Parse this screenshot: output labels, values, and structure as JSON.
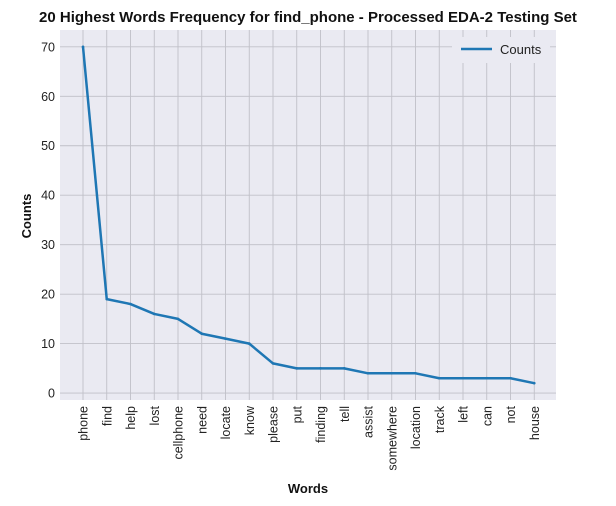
{
  "chart_data": {
    "type": "line",
    "title": "20 Highest Words Frequency for find_phone - Processed EDA-2 Testing Set",
    "xlabel": "Words",
    "ylabel": "Counts",
    "categories": [
      "phone",
      "find",
      "help",
      "lost",
      "cellphone",
      "need",
      "locate",
      "know",
      "please",
      "put",
      "finding",
      "tell",
      "assist",
      "somewhere",
      "location",
      "track",
      "left",
      "can",
      "not",
      "house"
    ],
    "series": [
      {
        "name": "Counts",
        "values": [
          70,
          19,
          18,
          16,
          15,
          12,
          11,
          10,
          6,
          5,
          5,
          5,
          4,
          4,
          4,
          3,
          3,
          3,
          3,
          2
        ]
      }
    ],
    "yticks": [
      0,
      10,
      20,
      30,
      40,
      50,
      60,
      70
    ],
    "ylim": [
      -1.4,
      73.4
    ],
    "grid": true,
    "legend_position": "top-right",
    "colors": {
      "line": "#1f77b4",
      "plot_background": "#eaeaf2",
      "grid": "#c0c0c8"
    }
  }
}
